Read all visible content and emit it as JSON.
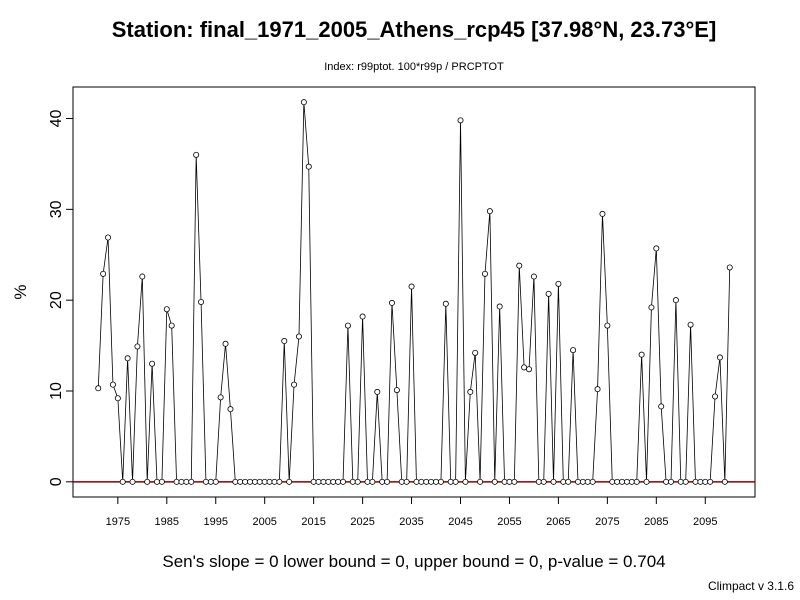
{
  "chart_data": {
    "type": "line",
    "title": "Station: final_1971_2005_Athens_rcp45 [37.98°N, 23.73°E]",
    "subtitle": "Index: r99ptot. 100*r99p / PRCPTOT",
    "y_label": "%",
    "footer": "Sen's slope = 0   lower bound = 0,   upper bound = 0,   p-value = 0.704",
    "credit": "Climpact v 3.1.6",
    "x": [
      1971,
      1972,
      1973,
      1974,
      1975,
      1976,
      1977,
      1978,
      1979,
      1980,
      1981,
      1982,
      1983,
      1984,
      1985,
      1986,
      1987,
      1988,
      1989,
      1990,
      1991,
      1992,
      1993,
      1994,
      1995,
      1996,
      1997,
      1998,
      1999,
      2000,
      2001,
      2002,
      2003,
      2004,
      2005,
      2006,
      2007,
      2008,
      2009,
      2010,
      2011,
      2012,
      2013,
      2014,
      2015,
      2016,
      2017,
      2018,
      2019,
      2020,
      2021,
      2022,
      2023,
      2024,
      2025,
      2026,
      2027,
      2028,
      2029,
      2030,
      2031,
      2032,
      2033,
      2034,
      2035,
      2036,
      2037,
      2038,
      2039,
      2040,
      2041,
      2042,
      2043,
      2044,
      2045,
      2046,
      2047,
      2048,
      2049,
      2050,
      2051,
      2052,
      2053,
      2054,
      2055,
      2056,
      2057,
      2058,
      2059,
      2060,
      2061,
      2062,
      2063,
      2064,
      2065,
      2066,
      2067,
      2068,
      2069,
      2070,
      2071,
      2072,
      2073,
      2074,
      2075,
      2076,
      2077,
      2078,
      2079,
      2080,
      2081,
      2082,
      2083,
      2084,
      2085,
      2086,
      2087,
      2088,
      2089,
      2090,
      2091,
      2092,
      2093,
      2094,
      2095,
      2096,
      2097,
      2098,
      2099,
      2100
    ],
    "series": [
      {
        "color": "#000000",
        "values": [
          10.3,
          22.9,
          26.9,
          10.7,
          9.2,
          0,
          13.6,
          0,
          14.9,
          22.6,
          0,
          13.0,
          0,
          0,
          19.0,
          17.2,
          0,
          0,
          0,
          0,
          36.0,
          19.8,
          0,
          0,
          0,
          9.3,
          15.2,
          8.0,
          0,
          0,
          0,
          0,
          0,
          0,
          0,
          0,
          0,
          0,
          15.5,
          0,
          10.7,
          16.0,
          41.8,
          34.7,
          0,
          0,
          0,
          0,
          0,
          0,
          0,
          17.2,
          0,
          0,
          18.2,
          0,
          0,
          9.9,
          0,
          0,
          19.7,
          10.1,
          0,
          0,
          21.5,
          0,
          0,
          0,
          0,
          0,
          0,
          19.6,
          0,
          0,
          39.8,
          0,
          9.9,
          14.2,
          0,
          22.9,
          29.8,
          0,
          19.3,
          0,
          0,
          0,
          23.8,
          12.6,
          12.4,
          22.6,
          0,
          0,
          20.7,
          0,
          21.8,
          0,
          0,
          14.5,
          0,
          0,
          0,
          0,
          10.2,
          29.5,
          17.2,
          0,
          0,
          0,
          0,
          0,
          0,
          14.0,
          0,
          19.2,
          25.7,
          8.3,
          0,
          0,
          20.0,
          0,
          0,
          17.3,
          0,
          0,
          0,
          0,
          9.4,
          13.7,
          0,
          23.6
        ]
      }
    ],
    "reference_line": {
      "value": 0,
      "color": "#8b0000"
    },
    "xlim": [
      1965.84,
      2105.16
    ],
    "xticks": [
      1975,
      1985,
      1995,
      2005,
      2015,
      2025,
      2035,
      2045,
      2055,
      2065,
      2075,
      2085,
      2095
    ],
    "ylim": [
      -1.672,
      43.472
    ],
    "yticks": [
      0,
      10,
      20,
      30,
      40
    ]
  }
}
